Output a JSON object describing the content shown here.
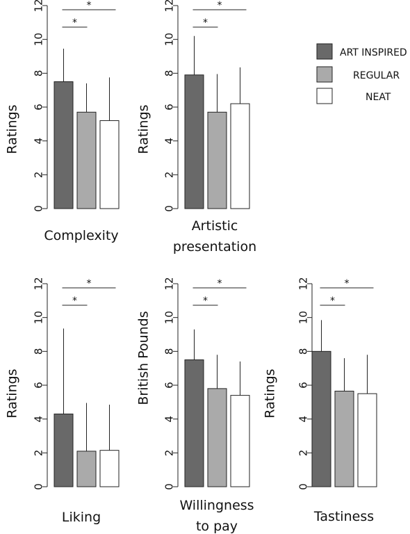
{
  "colors": {
    "ART INSPIRED": "#696969",
    "REGULAR": "#aaaaaa",
    "NEAT": "#ffffff",
    "bar_stroke": "#222222",
    "axis": "#222222"
  },
  "legend": {
    "placement": "top-right",
    "entries": [
      "ART INSPIRED",
      "REGULAR",
      "NEAT"
    ]
  },
  "chart_data": [
    {
      "type": "bar",
      "title": "",
      "xlabel": [
        "Complexity"
      ],
      "ylabel": "Ratings",
      "ylim": [
        0,
        12
      ],
      "yticks": [
        0,
        2,
        4,
        6,
        8,
        10,
        12
      ],
      "categories": [
        "ART INSPIRED",
        "REGULAR",
        "NEAT"
      ],
      "values": [
        7.5,
        5.7,
        5.2
      ],
      "error_upper": [
        9.45,
        7.4,
        7.75
      ],
      "significance": [
        {
          "from": "ART INSPIRED",
          "to": "REGULAR",
          "label": "*"
        },
        {
          "from": "ART INSPIRED",
          "to": "NEAT",
          "label": "*"
        }
      ]
    },
    {
      "type": "bar",
      "title": "",
      "xlabel": [
        "Artistic",
        "presentation"
      ],
      "ylabel": "Ratings",
      "ylim": [
        0,
        12
      ],
      "yticks": [
        0,
        2,
        4,
        6,
        8,
        10,
        12
      ],
      "categories": [
        "ART INSPIRED",
        "REGULAR",
        "NEAT"
      ],
      "values": [
        7.9,
        5.7,
        6.2
      ],
      "error_upper": [
        10.2,
        7.95,
        8.35
      ],
      "significance": [
        {
          "from": "ART INSPIRED",
          "to": "REGULAR",
          "label": "*"
        },
        {
          "from": "ART INSPIRED",
          "to": "NEAT",
          "label": "*"
        }
      ]
    },
    {
      "type": "bar",
      "title": "",
      "xlabel": [
        "Liking"
      ],
      "ylabel": "Ratings",
      "ylim": [
        0,
        12
      ],
      "yticks": [
        0,
        2,
        4,
        6,
        8,
        10,
        12
      ],
      "categories": [
        "ART INSPIRED",
        "REGULAR",
        "NEAT"
      ],
      "values": [
        4.3,
        2.1,
        2.15
      ],
      "error_upper": [
        9.35,
        4.95,
        4.85
      ],
      "significance": [
        {
          "from": "ART INSPIRED",
          "to": "REGULAR",
          "label": "*"
        },
        {
          "from": "ART INSPIRED",
          "to": "NEAT",
          "label": "*"
        }
      ]
    },
    {
      "type": "bar",
      "title": "",
      "xlabel": [
        "Willingness",
        "to pay"
      ],
      "ylabel": "British Pounds",
      "ylim": [
        0,
        12
      ],
      "yticks": [
        0,
        2,
        4,
        6,
        8,
        10,
        12
      ],
      "categories": [
        "ART INSPIRED",
        "REGULAR",
        "NEAT"
      ],
      "values": [
        7.5,
        5.8,
        5.4
      ],
      "error_upper": [
        9.3,
        7.8,
        7.4
      ],
      "significance": [
        {
          "from": "ART INSPIRED",
          "to": "REGULAR",
          "label": "*"
        },
        {
          "from": "ART INSPIRED",
          "to": "NEAT",
          "label": "*"
        }
      ]
    },
    {
      "type": "bar",
      "title": "",
      "xlabel": [
        "Tastiness"
      ],
      "ylabel": "Ratings",
      "ylim": [
        0,
        12
      ],
      "yticks": [
        0,
        2,
        4,
        6,
        8,
        10,
        12
      ],
      "categories": [
        "ART INSPIRED",
        "REGULAR",
        "NEAT"
      ],
      "values": [
        8.0,
        5.65,
        5.5
      ],
      "error_upper": [
        9.85,
        7.6,
        7.8
      ],
      "significance": [
        {
          "from": "ART INSPIRED",
          "to": "REGULAR",
          "label": "*"
        },
        {
          "from": "ART INSPIRED",
          "to": "NEAT",
          "label": "*"
        }
      ]
    }
  ]
}
